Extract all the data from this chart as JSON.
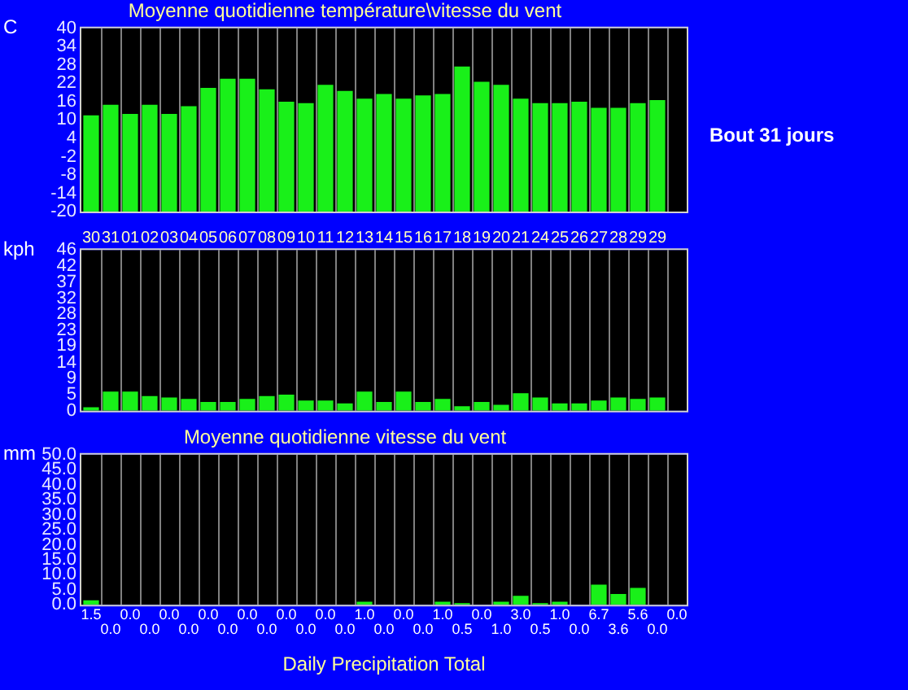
{
  "chart_data": [
    {
      "type": "bar",
      "title": "Moyenne quotidienne température\\vitesse du vent",
      "ylabel": "C",
      "categories": [
        "30",
        "31",
        "01",
        "02",
        "03",
        "04",
        "05",
        "06",
        "07",
        "08",
        "09",
        "10",
        "11",
        "12",
        "13",
        "14",
        "15",
        "16",
        "17",
        "18",
        "19",
        "20",
        "21",
        "24",
        "25",
        "26",
        "27",
        "28",
        "29",
        "29",
        null
      ],
      "values": [
        31.5,
        35,
        32,
        35,
        32,
        34.5,
        40.5,
        43.5,
        43.5,
        40,
        36,
        35.5,
        41.5,
        39.5,
        37,
        38.5,
        37,
        38,
        38.5,
        47.5,
        42.5,
        41.5,
        37,
        35.5,
        35.5,
        36,
        34,
        34,
        35.5,
        36.5,
        null
      ],
      "base": [
        -20,
        -20,
        -20,
        -20,
        -20,
        -20,
        -20,
        -20,
        -20,
        -20,
        -20,
        -20,
        -20,
        -20,
        -20,
        -20,
        -20,
        -20,
        -20,
        -20,
        -20,
        -20,
        -20,
        -20,
        -20,
        -20,
        -20,
        -20,
        -20,
        -20,
        null
      ],
      "color": "#19f019",
      "ylim": [
        -20,
        40
      ],
      "yticks": [
        -20,
        -14,
        -8,
        -2,
        4,
        10,
        16,
        22,
        28,
        34,
        40
      ],
      "grid": "x",
      "annotations": [
        "Bout 31 jours"
      ]
    },
    {
      "type": "bar",
      "ylabel": "kph",
      "categories": [
        "30",
        "31",
        "01",
        "02",
        "03",
        "04",
        "05",
        "06",
        "07",
        "08",
        "09",
        "10",
        "11",
        "12",
        "13",
        "14",
        "15",
        "16",
        "17",
        "18",
        "19",
        "20",
        "21",
        "24",
        "25",
        "26",
        "27",
        "28",
        "29",
        "29",
        null
      ],
      "values": [
        1,
        5.5,
        5.5,
        4.2,
        3.8,
        3.4,
        2.5,
        2.5,
        3.4,
        4.2,
        4.6,
        2.9,
        2.9,
        2.1,
        5.5,
        2.5,
        5.5,
        2.5,
        3.4,
        1.3,
        2.5,
        1.7,
        5,
        3.8,
        2.1,
        2.1,
        2.9,
        3.8,
        3.4,
        3.8,
        null
      ],
      "color": "#19f019",
      "ylim": [
        0,
        46
      ],
      "yticks": [
        {
          "value": 0,
          "label": "0"
        },
        {
          "value": 4.6,
          "label": "5"
        },
        {
          "value": 9.2,
          "label": "9"
        },
        {
          "value": 13.8,
          "label": "14"
        },
        {
          "value": 18.5,
          "label": "19"
        },
        {
          "value": 23,
          "label": "23"
        },
        {
          "value": 27.6,
          "label": "28"
        },
        {
          "value": 32.2,
          "label": "32"
        },
        {
          "value": 36.8,
          "label": "37"
        },
        {
          "value": 41.5,
          "label": "42"
        },
        {
          "value": 46,
          "label": "46"
        }
      ],
      "grid": "x",
      "tick_labels": "y"
    },
    {
      "type": "bar",
      "title": "Moyenne quotidienne vitesse du vent",
      "ylabel": "mm",
      "xlabel": "Daily Precipitation Total",
      "categories": [
        "30",
        "31",
        "01",
        "02",
        "03",
        "04",
        "05",
        "06",
        "07",
        "08",
        "09",
        "10",
        "11",
        "12",
        "13",
        "14",
        "15",
        "16",
        "17",
        "18",
        "19",
        "20",
        "21",
        "24",
        "25",
        "26",
        "27",
        "28",
        "29",
        "29",
        null
      ],
      "values": [
        1.5,
        0,
        0,
        0,
        0,
        0,
        0,
        0,
        0,
        0,
        0,
        0,
        0,
        0,
        1,
        0,
        0,
        0,
        1,
        0.5,
        0,
        1,
        3,
        0.5,
        1,
        0,
        6.7,
        3.6,
        5.6,
        0,
        0
      ],
      "value_labels": [
        "1.5",
        "0.0",
        "0.0",
        "0.0",
        "0.0",
        "0.0",
        "0.0",
        "0.0",
        "0.0",
        "0.0",
        "0.0",
        "0.0",
        "0.0",
        "0.0",
        "1.0",
        "0.0",
        "0.0",
        "0.0",
        "1.0",
        "0.5",
        "0.0",
        "1.0",
        "3.0",
        "0.5",
        "1.0",
        "0.0",
        "6.7",
        "3.6",
        "5.6",
        "0.0",
        "0.0"
      ],
      "color": "#19f019",
      "ylim": [
        0,
        50
      ],
      "yticks": [
        {
          "value": 0,
          "label": "0.0"
        },
        {
          "value": 5,
          "label": "5.0"
        },
        {
          "value": 10,
          "label": "10.0"
        },
        {
          "value": 15,
          "label": "15.0"
        },
        {
          "value": 20,
          "label": "20.0"
        },
        {
          "value": 25,
          "label": "25.0"
        },
        {
          "value": 30,
          "label": "30.0"
        },
        {
          "value": 35,
          "label": "35.0"
        },
        {
          "value": 40,
          "label": "40.0"
        },
        {
          "value": 45,
          "label": "45.0"
        },
        {
          "value": 50,
          "label": "50.0"
        }
      ],
      "grid": "x",
      "tick_labels": "y"
    }
  ]
}
